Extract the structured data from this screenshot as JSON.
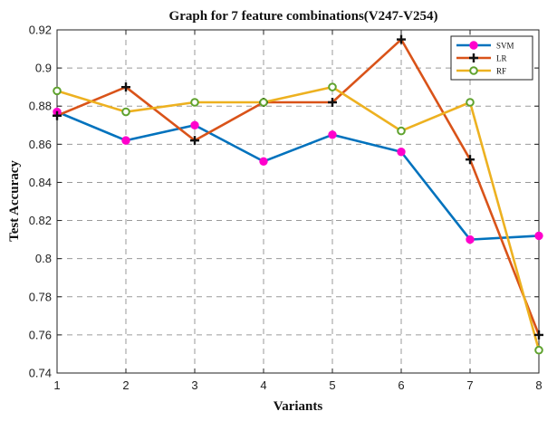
{
  "chart_data": {
    "type": "line",
    "title": "Graph for 7 feature combinations(V247-V254)",
    "xlabel": "Variants",
    "ylabel": "Test Accuracy",
    "x": [
      1,
      2,
      3,
      4,
      5,
      6,
      7,
      8
    ],
    "xlim": [
      1,
      8
    ],
    "ylim": [
      0.74,
      0.92
    ],
    "xticks": [
      "1",
      "2",
      "3",
      "4",
      "5",
      "6",
      "7",
      "8"
    ],
    "yticks": [
      "0.74",
      "0.76",
      "0.78",
      "0.8",
      "0.82",
      "0.84",
      "0.86",
      "0.88",
      "0.9",
      "0.92"
    ],
    "grid": true,
    "legend_position": "top-right",
    "series": [
      {
        "name": "SVM",
        "color": "#0072BD",
        "marker": "circle-filled",
        "marker_color": "#FF00CC",
        "values": [
          0.877,
          0.862,
          0.87,
          0.851,
          0.865,
          0.856,
          0.81,
          0.812
        ]
      },
      {
        "name": "LR",
        "color": "#D95319",
        "marker": "plus",
        "marker_color": "#111111",
        "values": [
          0.875,
          0.89,
          0.862,
          0.882,
          0.882,
          0.915,
          0.852,
          0.76
        ]
      },
      {
        "name": "RF",
        "color": "#EDB120",
        "marker": "circle-open",
        "marker_color": "#5FA22E",
        "values": [
          0.888,
          0.877,
          0.882,
          0.882,
          0.89,
          0.867,
          0.882,
          0.752
        ]
      }
    ]
  }
}
